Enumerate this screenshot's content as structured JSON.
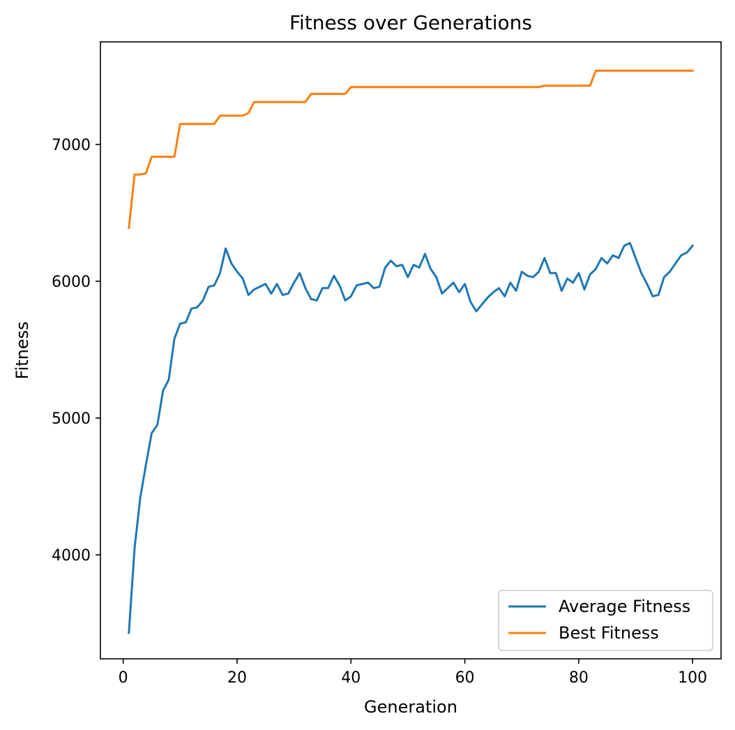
{
  "chart_data": {
    "type": "line",
    "title": "Fitness over Generations",
    "xlabel": "Generation",
    "ylabel": "Fitness",
    "xlim": [
      -4,
      105
    ],
    "ylim": [
      3240,
      7750
    ],
    "xticks": [
      0,
      20,
      40,
      60,
      80,
      100
    ],
    "yticks": [
      4000,
      5000,
      6000,
      7000
    ],
    "grid": false,
    "legend_position": "lower right",
    "series": [
      {
        "name": "Average Fitness",
        "color": "#1f77b4",
        "x": [
          1,
          2,
          3,
          4,
          5,
          6,
          7,
          8,
          9,
          10,
          11,
          12,
          13,
          14,
          15,
          16,
          17,
          18,
          19,
          20,
          21,
          22,
          23,
          24,
          25,
          26,
          27,
          28,
          29,
          30,
          31,
          32,
          33,
          34,
          35,
          36,
          37,
          38,
          39,
          40,
          41,
          42,
          43,
          44,
          45,
          46,
          47,
          48,
          49,
          50,
          51,
          52,
          53,
          54,
          55,
          56,
          57,
          58,
          59,
          60,
          61,
          62,
          63,
          64,
          65,
          66,
          67,
          68,
          69,
          70,
          71,
          72,
          73,
          74,
          75,
          76,
          77,
          78,
          79,
          80,
          81,
          82,
          83,
          84,
          85,
          86,
          87,
          88,
          89,
          90,
          91,
          92,
          93,
          94,
          95,
          96,
          97,
          98,
          99,
          100
        ],
        "values": [
          3430,
          4050,
          4420,
          4660,
          4890,
          4950,
          5200,
          5280,
          5580,
          5690,
          5700,
          5800,
          5810,
          5860,
          5960,
          5970,
          6060,
          6240,
          6130,
          6070,
          6020,
          5900,
          5940,
          5960,
          5980,
          5910,
          5980,
          5900,
          5910,
          5990,
          6060,
          5950,
          5870,
          5860,
          5950,
          5950,
          6040,
          5970,
          5860,
          5890,
          5970,
          5980,
          5990,
          5950,
          5960,
          6100,
          6150,
          6110,
          6120,
          6030,
          6120,
          6100,
          6200,
          6090,
          6030,
          5910,
          5950,
          5990,
          5920,
          5980,
          5850,
          5780,
          5830,
          5880,
          5920,
          5950,
          5890,
          5990,
          5930,
          6070,
          6040,
          6030,
          6070,
          6170,
          6060,
          6060,
          5930,
          6020,
          5990,
          6060,
          5940,
          6050,
          6090,
          6170,
          6130,
          6190,
          6170,
          6260,
          6280,
          6170,
          6060,
          5980,
          5890,
          5900,
          6030,
          6070,
          6130,
          6190,
          6210,
          6260
        ]
      },
      {
        "name": "Best Fitness",
        "color": "#ff7f0e",
        "x": [
          1,
          2,
          3,
          4,
          5,
          6,
          7,
          8,
          9,
          10,
          11,
          12,
          13,
          14,
          15,
          16,
          17,
          18,
          19,
          20,
          21,
          22,
          23,
          24,
          25,
          26,
          27,
          28,
          29,
          30,
          31,
          32,
          33,
          34,
          35,
          36,
          37,
          38,
          39,
          40,
          41,
          42,
          43,
          44,
          45,
          46,
          47,
          48,
          49,
          50,
          51,
          52,
          53,
          54,
          55,
          56,
          57,
          58,
          59,
          60,
          61,
          62,
          63,
          64,
          65,
          66,
          67,
          68,
          69,
          70,
          71,
          72,
          73,
          74,
          75,
          76,
          77,
          78,
          79,
          80,
          81,
          82,
          83,
          84,
          85,
          86,
          87,
          88,
          89,
          90,
          91,
          92,
          93,
          94,
          95,
          96,
          97,
          98,
          99,
          100
        ],
        "values": [
          6390,
          6780,
          6780,
          6790,
          6910,
          6910,
          6910,
          6910,
          6910,
          7150,
          7150,
          7150,
          7150,
          7150,
          7150,
          7150,
          7210,
          7210,
          7210,
          7210,
          7210,
          7230,
          7310,
          7310,
          7310,
          7310,
          7310,
          7310,
          7310,
          7310,
          7310,
          7310,
          7370,
          7370,
          7370,
          7370,
          7370,
          7370,
          7370,
          7420,
          7420,
          7420,
          7420,
          7420,
          7420,
          7420,
          7420,
          7420,
          7420,
          7420,
          7420,
          7420,
          7420,
          7420,
          7420,
          7420,
          7420,
          7420,
          7420,
          7420,
          7420,
          7420,
          7420,
          7420,
          7420,
          7420,
          7420,
          7420,
          7420,
          7420,
          7420,
          7420,
          7420,
          7430,
          7430,
          7430,
          7430,
          7430,
          7430,
          7430,
          7430,
          7430,
          7540,
          7540,
          7540,
          7540,
          7540,
          7540,
          7540,
          7540,
          7540,
          7540,
          7540,
          7540,
          7540,
          7540,
          7540,
          7540,
          7540,
          7540
        ]
      }
    ]
  }
}
